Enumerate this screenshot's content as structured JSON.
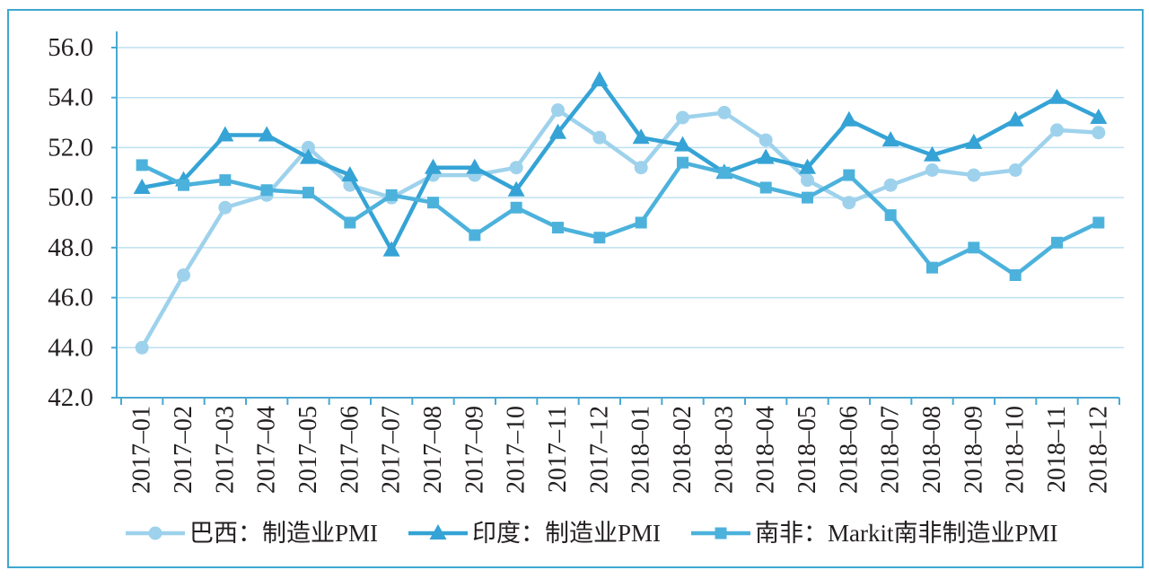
{
  "colors": {
    "frame": "#3fa7cf",
    "axis": "#4aa8d2",
    "grid": "#bde0f0",
    "text": "#231f20"
  },
  "chart_data": {
    "type": "line",
    "categories": [
      "2017–01",
      "2017–02",
      "2017–03",
      "2017–04",
      "2017–05",
      "2017–06",
      "2017–07",
      "2017–08",
      "2017–09",
      "2017–10",
      "2017–11",
      "2017–12",
      "2018–01",
      "2018–02",
      "2018–03",
      "2018–04",
      "2018–05",
      "2018–06",
      "2018–07",
      "2018–08",
      "2018–09",
      "2018–10",
      "2018–11",
      "2018–12"
    ],
    "ylim": [
      42,
      56
    ],
    "yticks": [
      "42.0",
      "44.0",
      "46.0",
      "48.0",
      "50.0",
      "52.0",
      "54.0",
      "56.0"
    ],
    "grid": true,
    "legend_position": "bottom",
    "series": [
      {
        "name": "巴西：制造业PMI",
        "marker": "circle",
        "color": "#9ed2ec",
        "values": [
          44.0,
          46.9,
          49.6,
          50.1,
          52.0,
          50.5,
          50.0,
          50.9,
          50.9,
          51.2,
          53.5,
          52.4,
          51.2,
          53.2,
          53.4,
          52.3,
          50.7,
          49.8,
          50.5,
          51.1,
          50.9,
          51.1,
          52.7,
          52.6
        ]
      },
      {
        "name": "印度：制造业PMI",
        "marker": "triangle",
        "color": "#35a3d5",
        "values": [
          50.4,
          50.7,
          52.5,
          52.5,
          51.6,
          50.9,
          47.9,
          51.2,
          51.2,
          50.3,
          52.6,
          54.7,
          52.4,
          52.1,
          51.0,
          51.6,
          51.2,
          53.1,
          52.3,
          51.7,
          52.2,
          53.1,
          54.0,
          53.2
        ]
      },
      {
        "name": "南非：Markit南非制造业PMI",
        "marker": "square",
        "color": "#4cb2dc",
        "values": [
          51.3,
          50.5,
          50.7,
          50.3,
          50.2,
          49.0,
          50.1,
          49.8,
          48.5,
          49.6,
          48.8,
          48.4,
          49.0,
          51.4,
          51.0,
          50.4,
          50.0,
          50.9,
          49.3,
          47.2,
          48.0,
          46.9,
          48.2,
          49.0
        ]
      }
    ]
  }
}
